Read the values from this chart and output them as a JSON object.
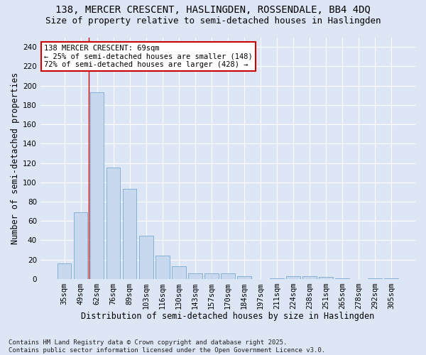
{
  "title1": "138, MERCER CRESCENT, HASLINGDEN, ROSSENDALE, BB4 4DQ",
  "title2": "Size of property relative to semi-detached houses in Haslingden",
  "xlabel": "Distribution of semi-detached houses by size in Haslingden",
  "ylabel": "Number of semi-detached properties",
  "categories": [
    "35sqm",
    "49sqm",
    "62sqm",
    "76sqm",
    "89sqm",
    "103sqm",
    "116sqm",
    "130sqm",
    "143sqm",
    "157sqm",
    "170sqm",
    "184sqm",
    "197sqm",
    "211sqm",
    "224sqm",
    "238sqm",
    "251sqm",
    "265sqm",
    "278sqm",
    "292sqm",
    "305sqm"
  ],
  "values": [
    16,
    69,
    193,
    115,
    93,
    45,
    24,
    13,
    6,
    6,
    6,
    3,
    0,
    1,
    3,
    3,
    2,
    1,
    0,
    1,
    1
  ],
  "bar_color": "#c8d9ef",
  "bar_edge_color": "#7aaad0",
  "bg_color": "#dce6f5",
  "grid_color": "#ffffff",
  "annotation_text": "138 MERCER CRESCENT: 69sqm\n← 25% of semi-detached houses are smaller (148)\n72% of semi-detached houses are larger (428) →",
  "annotation_box_color": "#ffffff",
  "annotation_border_color": "#cc0000",
  "redline_bar_index": 1,
  "ylim": [
    0,
    250
  ],
  "yticks": [
    0,
    20,
    40,
    60,
    80,
    100,
    120,
    140,
    160,
    180,
    200,
    220,
    240
  ],
  "footnote": "Contains HM Land Registry data © Crown copyright and database right 2025.\nContains public sector information licensed under the Open Government Licence v3.0.",
  "title_fontsize": 10,
  "subtitle_fontsize": 9,
  "axis_label_fontsize": 8.5,
  "tick_fontsize": 7.5,
  "annot_fontsize": 7.5,
  "footnote_fontsize": 6.5
}
